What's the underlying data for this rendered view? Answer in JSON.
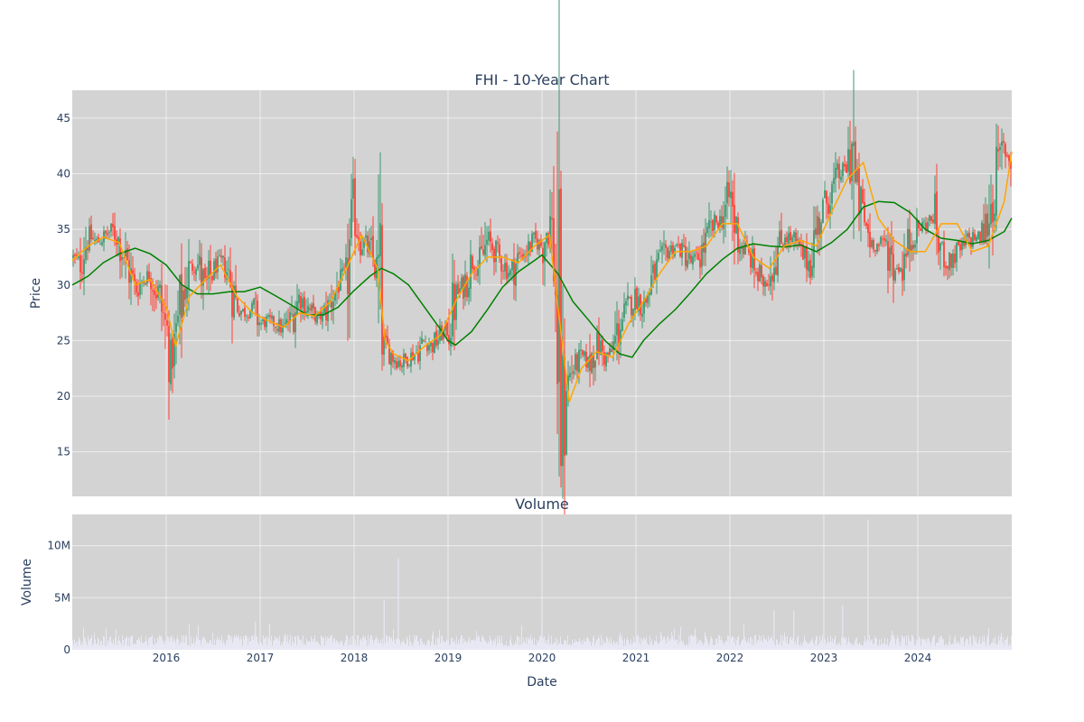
{
  "chart_data": [
    {
      "type": "candlestick",
      "title": "FHI - 10-Year Chart",
      "ylabel": "Price",
      "xlabel": "",
      "ylim": [
        11,
        47.5
      ],
      "xlim": [
        2015.0,
        2025.0
      ],
      "yticks": [
        15,
        20,
        25,
        30,
        35,
        40,
        45
      ],
      "grid": true,
      "background": "#d3d3d3",
      "colors": {
        "up": "#3d9970",
        "down": "#ff4136",
        "ma_fast": "#ffa500",
        "ma_slow": "#008000"
      },
      "close_series": {
        "x": [
          2015.0,
          2015.08,
          2015.17,
          2015.25,
          2015.33,
          2015.42,
          2015.5,
          2015.58,
          2015.67,
          2015.75,
          2015.83,
          2015.92,
          2016.0,
          2016.05,
          2016.1,
          2016.17,
          2016.25,
          2016.33,
          2016.42,
          2016.5,
          2016.58,
          2016.67,
          2016.75,
          2016.83,
          2016.92,
          2017.0,
          2017.08,
          2017.17,
          2017.25,
          2017.33,
          2017.42,
          2017.5,
          2017.58,
          2017.67,
          2017.75,
          2017.83,
          2017.92,
          2018.0,
          2018.08,
          2018.17,
          2018.25,
          2018.29,
          2018.33,
          2018.42,
          2018.5,
          2018.58,
          2018.67,
          2018.75,
          2018.83,
          2018.92,
          2019.0,
          2019.08,
          2019.17,
          2019.25,
          2019.33,
          2019.42,
          2019.5,
          2019.58,
          2019.67,
          2019.75,
          2019.83,
          2019.92,
          2020.0,
          2020.08,
          2020.13,
          2020.17,
          2020.2,
          2020.25,
          2020.33,
          2020.42,
          2020.5,
          2020.58,
          2020.67,
          2020.75,
          2020.83,
          2020.92,
          2021.0,
          2021.08,
          2021.17,
          2021.25,
          2021.33,
          2021.42,
          2021.5,
          2021.58,
          2021.67,
          2021.75,
          2021.83,
          2021.92,
          2022.0,
          2022.08,
          2022.17,
          2022.25,
          2022.33,
          2022.42,
          2022.5,
          2022.58,
          2022.67,
          2022.75,
          2022.83,
          2022.92,
          2023.0,
          2023.08,
          2023.17,
          2023.25,
          2023.3,
          2023.33,
          2023.42,
          2023.5,
          2023.58,
          2023.67,
          2023.75,
          2023.83,
          2023.92,
          2024.0,
          2024.08,
          2024.17,
          2024.25,
          2024.33,
          2024.42,
          2024.5,
          2024.58,
          2024.67,
          2024.75,
          2024.83,
          2024.92,
          2025.0
        ],
        "y": [
          32.5,
          32.0,
          34.5,
          33.8,
          34.2,
          35.0,
          34.0,
          32.0,
          29.5,
          30.5,
          31.0,
          29.0,
          26.0,
          23.5,
          25.0,
          29.0,
          31.5,
          32.0,
          29.5,
          31.5,
          32.0,
          31.0,
          28.0,
          27.5,
          28.0,
          26.5,
          26.8,
          26.5,
          26.0,
          27.0,
          29.0,
          28.0,
          27.0,
          27.2,
          28.5,
          30.0,
          31.0,
          36.0,
          34.0,
          33.0,
          31.0,
          25.0,
          24.5,
          23.5,
          23.0,
          23.5,
          24.0,
          25.0,
          24.5,
          25.5,
          26.0,
          29.0,
          30.0,
          32.0,
          31.5,
          34.0,
          33.0,
          32.0,
          31.0,
          32.5,
          33.0,
          34.0,
          33.5,
          36.0,
          33.0,
          24.0,
          15.0,
          21.0,
          22.5,
          23.5,
          23.0,
          25.0,
          23.5,
          24.0,
          26.5,
          28.0,
          29.0,
          28.0,
          30.5,
          32.0,
          33.0,
          33.5,
          33.0,
          32.0,
          32.5,
          34.0,
          35.5,
          36.0,
          38.0,
          34.0,
          33.0,
          32.0,
          30.0,
          31.0,
          33.0,
          34.5,
          34.0,
          33.0,
          32.0,
          35.0,
          37.0,
          38.5,
          40.0,
          40.5,
          43.0,
          39.0,
          36.0,
          34.0,
          33.5,
          34.0,
          31.5,
          31.5,
          34.0,
          35.0,
          35.5,
          36.0,
          33.0,
          32.0,
          33.0,
          33.5,
          34.5,
          34.0,
          36.0,
          40.0,
          42.5,
          41.0
        ]
      },
      "ma_fast": {
        "x": [
          2015.0,
          2015.17,
          2015.33,
          2015.5,
          2015.67,
          2015.83,
          2016.0,
          2016.1,
          2016.25,
          2016.42,
          2016.58,
          2016.75,
          2016.92,
          2017.08,
          2017.25,
          2017.42,
          2017.58,
          2017.75,
          2017.92,
          2018.08,
          2018.25,
          2018.33,
          2018.42,
          2018.58,
          2018.75,
          2018.92,
          2019.08,
          2019.25,
          2019.42,
          2019.58,
          2019.75,
          2019.92,
          2020.08,
          2020.17,
          2020.29,
          2020.42,
          2020.58,
          2020.75,
          2020.92,
          2021.08,
          2021.25,
          2021.42,
          2021.58,
          2021.75,
          2021.92,
          2022.08,
          2022.25,
          2022.42,
          2022.58,
          2022.75,
          2022.92,
          2023.08,
          2023.25,
          2023.42,
          2023.58,
          2023.75,
          2023.92,
          2024.08,
          2024.25,
          2024.42,
          2024.58,
          2024.75,
          2024.92,
          2025.0
        ],
        "y": [
          32.2,
          33.5,
          34.3,
          33.8,
          30.0,
          30.5,
          28.0,
          24.5,
          29.0,
          30.5,
          31.8,
          29.0,
          27.5,
          26.8,
          26.2,
          27.5,
          27.2,
          28.5,
          31.5,
          34.5,
          31.5,
          25.0,
          23.8,
          23.2,
          24.5,
          25.5,
          28.5,
          31.0,
          32.5,
          32.5,
          32.0,
          33.5,
          34.5,
          28.0,
          19.5,
          22.5,
          24.0,
          23.5,
          26.5,
          28.5,
          31.0,
          33.0,
          33.0,
          33.5,
          35.5,
          35.5,
          32.5,
          31.5,
          33.5,
          34.0,
          33.5,
          36.5,
          39.5,
          41.0,
          36.0,
          34.0,
          33.0,
          33.0,
          35.5,
          35.5,
          33.0,
          33.5,
          37.5,
          42.0
        ]
      },
      "ma_slow": {
        "x": [
          2015.0,
          2015.17,
          2015.33,
          2015.5,
          2015.67,
          2015.83,
          2016.0,
          2016.17,
          2016.33,
          2016.5,
          2016.67,
          2016.83,
          2017.0,
          2017.17,
          2017.33,
          2017.5,
          2017.67,
          2017.83,
          2018.0,
          2018.17,
          2018.29,
          2018.42,
          2018.58,
          2018.75,
          2018.92,
          2019.0,
          2019.08,
          2019.25,
          2019.42,
          2019.58,
          2019.75,
          2019.92,
          2020.0,
          2020.17,
          2020.33,
          2020.5,
          2020.67,
          2020.83,
          2020.96,
          2021.08,
          2021.25,
          2021.42,
          2021.58,
          2021.75,
          2021.92,
          2022.08,
          2022.25,
          2022.42,
          2022.58,
          2022.75,
          2022.92,
          2023.08,
          2023.25,
          2023.42,
          2023.58,
          2023.75,
          2023.92,
          2024.08,
          2024.25,
          2024.42,
          2024.58,
          2024.75,
          2024.92,
          2025.0
        ],
        "y": [
          30.0,
          30.8,
          32.0,
          32.8,
          33.3,
          32.8,
          31.8,
          30.0,
          29.2,
          29.2,
          29.4,
          29.4,
          29.8,
          29.0,
          28.2,
          27.3,
          27.3,
          28.0,
          29.5,
          30.8,
          31.5,
          31.0,
          30.0,
          28.0,
          26.0,
          25.0,
          24.6,
          25.8,
          27.8,
          29.8,
          31.2,
          32.2,
          32.7,
          31.0,
          28.5,
          26.8,
          25.0,
          23.8,
          23.5,
          25.0,
          26.5,
          27.8,
          29.3,
          31.0,
          32.3,
          33.3,
          33.7,
          33.5,
          33.4,
          33.6,
          33.0,
          33.8,
          35.0,
          37.0,
          37.5,
          37.4,
          36.5,
          35.0,
          34.2,
          34.0,
          33.7,
          34.0,
          34.8,
          36.0
        ]
      }
    },
    {
      "type": "bar",
      "title": "Volume",
      "ylabel": "Volume",
      "xlabel": "Date",
      "ylim": [
        0,
        13000000
      ],
      "xlim": [
        2015.0,
        2025.0
      ],
      "yticks": [
        0,
        5000000,
        10000000
      ],
      "ytick_labels": [
        "0",
        "5M",
        "10M"
      ],
      "xticks": [
        2016,
        2017,
        2018,
        2019,
        2020,
        2021,
        2022,
        2023,
        2024
      ],
      "xtick_labels": [
        "2016",
        "2017",
        "2018",
        "2019",
        "2020",
        "2021",
        "2022",
        "2023",
        "2024"
      ],
      "bar_color": "#e8e8f4",
      "baseline_volume": 900000,
      "spikes": [
        {
          "x": 2016.95,
          "v": 2700000
        },
        {
          "x": 2017.1,
          "v": 2500000
        },
        {
          "x": 2018.32,
          "v": 4800000
        },
        {
          "x": 2018.47,
          "v": 8800000
        },
        {
          "x": 2020.0,
          "v": 2400000
        },
        {
          "x": 2022.47,
          "v": 3800000
        },
        {
          "x": 2022.68,
          "v": 3700000
        },
        {
          "x": 2023.2,
          "v": 4300000
        },
        {
          "x": 2023.47,
          "v": 12500000
        }
      ]
    }
  ]
}
